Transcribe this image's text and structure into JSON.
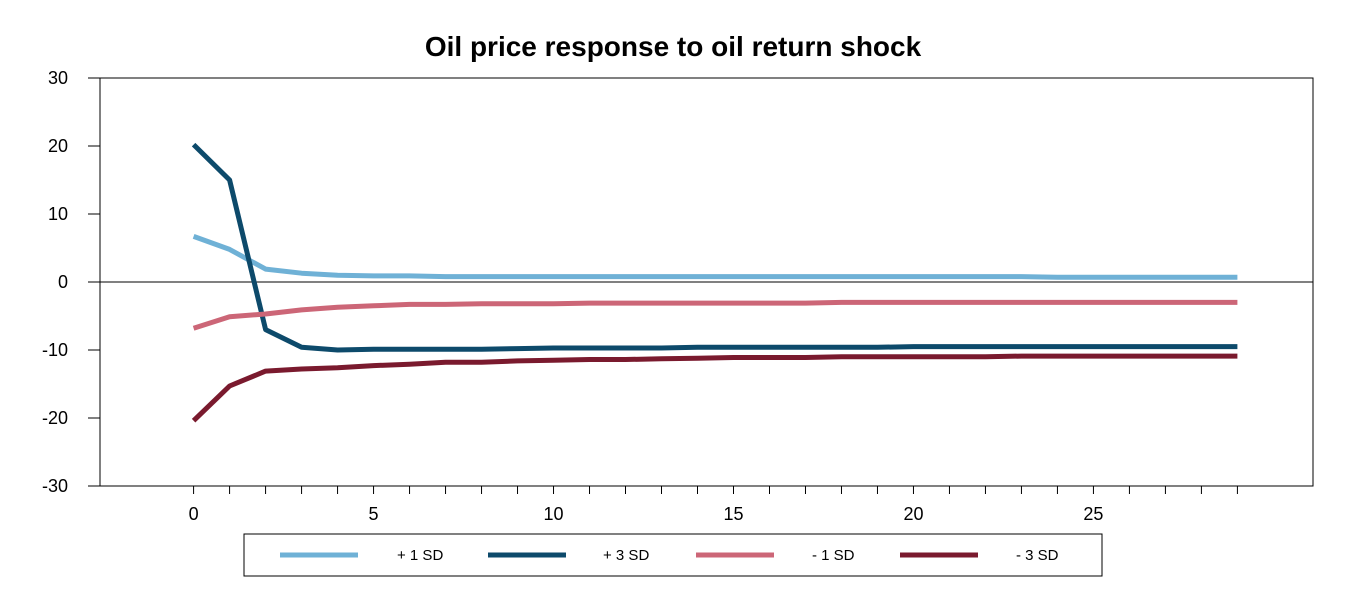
{
  "chart_data": {
    "type": "line",
    "title": "Oil price response to oil return shock",
    "xlabel": "",
    "ylabel": "",
    "xlim": [
      -2.6,
      31.1
    ],
    "ylim": [
      -30,
      30
    ],
    "x_ticks": [
      0,
      5,
      10,
      15,
      20,
      25
    ],
    "y_ticks": [
      30,
      20,
      10,
      0,
      -10,
      -20,
      -30
    ],
    "grid": false,
    "legend_position": "bottom",
    "x": [
      0,
      1,
      2,
      3,
      4,
      5,
      6,
      7,
      8,
      9,
      10,
      11,
      12,
      13,
      14,
      15,
      16,
      17,
      18,
      19,
      20,
      21,
      22,
      23,
      24,
      25,
      26,
      27,
      28,
      29
    ],
    "series": [
      {
        "name": "+ 1 SD",
        "color": "#6fb1d6",
        "values": [
          6.7,
          4.8,
          1.9,
          1.3,
          1.0,
          0.9,
          0.9,
          0.8,
          0.8,
          0.8,
          0.8,
          0.8,
          0.8,
          0.8,
          0.8,
          0.8,
          0.8,
          0.8,
          0.8,
          0.8,
          0.8,
          0.8,
          0.8,
          0.8,
          0.7,
          0.7,
          0.7,
          0.7,
          0.7,
          0.7
        ]
      },
      {
        "name": "+ 3 SD",
        "color": "#0d4a6b",
        "values": [
          20.2,
          15.0,
          -7.0,
          -9.6,
          -10.0,
          -9.9,
          -9.9,
          -9.9,
          -9.9,
          -9.8,
          -9.7,
          -9.7,
          -9.7,
          -9.7,
          -9.6,
          -9.6,
          -9.6,
          -9.6,
          -9.6,
          -9.6,
          -9.5,
          -9.5,
          -9.5,
          -9.5,
          -9.5,
          -9.5,
          -9.5,
          -9.5,
          -9.5,
          -9.5
        ]
      },
      {
        "name": "- 1 SD",
        "color": "#cc6677",
        "values": [
          -6.8,
          -5.1,
          -4.7,
          -4.1,
          -3.7,
          -3.5,
          -3.3,
          -3.3,
          -3.2,
          -3.2,
          -3.2,
          -3.1,
          -3.1,
          -3.1,
          -3.1,
          -3.1,
          -3.1,
          -3.1,
          -3.0,
          -3.0,
          -3.0,
          -3.0,
          -3.0,
          -3.0,
          -3.0,
          -3.0,
          -3.0,
          -3.0,
          -3.0,
          -3.0
        ]
      },
      {
        "name": "- 3 SD",
        "color": "#7a1a2e",
        "values": [
          -20.4,
          -15.3,
          -13.1,
          -12.8,
          -12.6,
          -12.3,
          -12.1,
          -11.8,
          -11.8,
          -11.6,
          -11.5,
          -11.4,
          -11.4,
          -11.3,
          -11.2,
          -11.1,
          -11.1,
          -11.1,
          -11.0,
          -11.0,
          -11.0,
          -11.0,
          -11.0,
          -10.9,
          -10.9,
          -10.9,
          -10.9,
          -10.9,
          -10.9,
          -10.9
        ]
      }
    ]
  }
}
